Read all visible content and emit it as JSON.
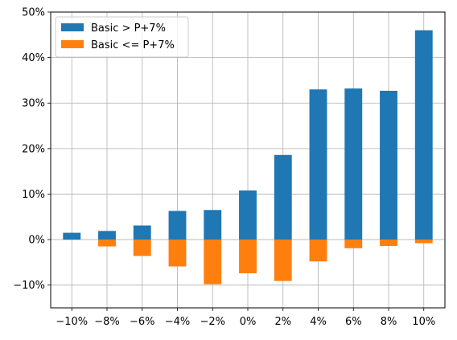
{
  "chart_data": {
    "type": "bar",
    "stacked": true,
    "categories": [
      "−10%",
      "−8%",
      "−6%",
      "−4%",
      "−2%",
      "0%",
      "2%",
      "4%",
      "6%",
      "8%",
      "10%"
    ],
    "series": [
      {
        "name": "Basic > P+7%",
        "color": "#1f77b4",
        "values": [
          1.5,
          1.9,
          3.1,
          6.3,
          6.5,
          10.8,
          18.6,
          33.0,
          33.2,
          32.7,
          46.0
        ]
      },
      {
        "name": "Basic <= P+7%",
        "color": "#ff7f0e",
        "values": [
          0.0,
          -1.5,
          -3.6,
          -5.9,
          -9.8,
          -7.4,
          -9.1,
          -4.8,
          -1.9,
          -1.4,
          -0.8
        ]
      }
    ],
    "ylim": [
      -15,
      50
    ],
    "yticks": [
      -10,
      0,
      10,
      20,
      30,
      40,
      50
    ],
    "ytick_labels": [
      "−10%",
      "0%",
      "10%",
      "20%",
      "30%",
      "40%",
      "50%"
    ],
    "grid": true,
    "legend_position": "upper-left",
    "title": "",
    "xlabel": "",
    "ylabel": ""
  }
}
